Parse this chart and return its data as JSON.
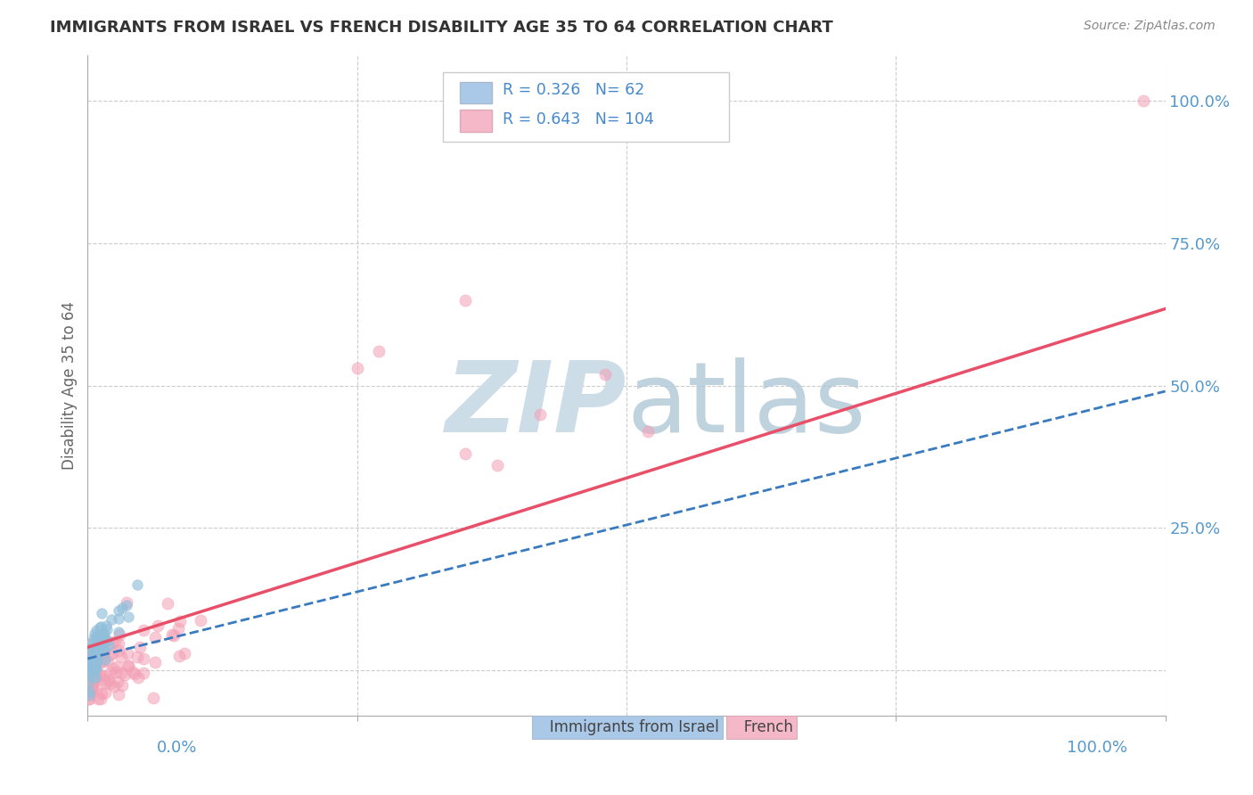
{
  "title": "IMMIGRANTS FROM ISRAEL VS FRENCH DISABILITY AGE 35 TO 64 CORRELATION CHART",
  "source": "Source: ZipAtlas.com",
  "ylabel": "Disability Age 35 to 64",
  "xlim": [
    0.0,
    1.0
  ],
  "ylim": [
    -0.08,
    1.08
  ],
  "israel_R": 0.326,
  "israel_N": 62,
  "french_R": 0.643,
  "french_N": 104,
  "israel_color": "#91bfdb",
  "french_color": "#f4a0b5",
  "israel_line_color": "#3a7abf",
  "french_line_color": "#e8506a",
  "background_color": "#ffffff",
  "grid_color": "#cccccc",
  "watermark_color": "#ccdde8",
  "tick_label_color": "#5599cc",
  "axis_label_color": "#666666",
  "title_color": "#333333",
  "legend_R1": "0.326",
  "legend_N1": "62",
  "legend_R2": "0.643",
  "legend_N2": "104",
  "legend_color1": "#aac8e8",
  "legend_color2": "#f4b8c8",
  "legend_text_color": "#333333",
  "legend_val_color": "#4488cc",
  "bottom_label1": "Immigrants from Israel",
  "bottom_label2": "French",
  "source_color": "#888888"
}
